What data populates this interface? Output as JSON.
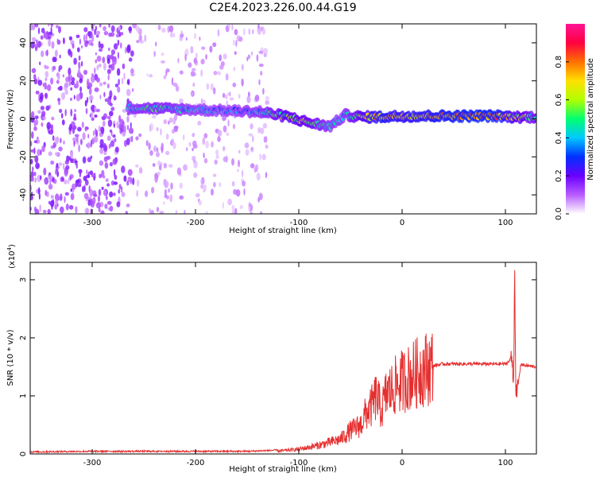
{
  "figure": {
    "title": "C2E4.2023.226.00.44.G19"
  },
  "chart_data": [
    {
      "type": "heatmap",
      "xlabel": "Height of straight line (km)",
      "ylabel": "Frequency (Hz)",
      "xlim": [
        -360,
        130
      ],
      "ylim": [
        -50,
        50
      ],
      "x_ticks": [
        -300,
        -200,
        -100,
        0,
        100
      ],
      "x_tick_labels": [
        "-300",
        "-200",
        "-100",
        "0",
        "100"
      ],
      "y_ticks": [
        -40,
        -20,
        0,
        20,
        40
      ],
      "y_tick_labels": [
        "-40",
        "-20",
        "0",
        "20",
        "40"
      ],
      "colorbar": {
        "label": "Normalized spectral amplitude",
        "range": [
          0,
          1
        ],
        "ticks": [
          0.0,
          0.2,
          0.4,
          0.6,
          0.8
        ],
        "tick_labels": [
          "0.0",
          "0.2",
          "0.4",
          "0.6",
          "0.8"
        ],
        "colormap": [
          "#ffffff",
          "#b85cff",
          "#6a00ff",
          "#0030ff",
          "#00c8ff",
          "#00ff70",
          "#b0ff00",
          "#ffe000",
          "#ff7000",
          "#ff0040",
          "#ff1493"
        ]
      },
      "signal_track": {
        "description_free": true,
        "x": [
          -265,
          -240,
          -210,
          -180,
          -150,
          -130,
          -110,
          -90,
          -70,
          -55,
          -40,
          -20,
          0,
          30,
          60,
          90,
          110,
          130
        ],
        "freq": [
          6,
          5.5,
          5,
          4.5,
          4,
          3,
          1,
          -2,
          -4,
          2,
          1,
          1,
          1.5,
          1.5,
          1.5,
          1.5,
          1,
          1
        ],
        "amplitude": [
          0.4,
          0.45,
          0.4,
          0.35,
          0.35,
          0.45,
          0.6,
          0.55,
          0.4,
          0.4,
          0.6,
          0.75,
          0.7,
          0.75,
          0.8,
          0.8,
          0.6,
          0.5
        ]
      },
      "grid": false
    },
    {
      "type": "line",
      "xlabel": "Height of straight line (km)",
      "ylabel": "SNR (10 * v/v)",
      "y_exponent_label": "(x10",
      "y_exponent": "4",
      "y_exponent_close": ")",
      "xlim": [
        -360,
        130
      ],
      "ylim": [
        0,
        3.3
      ],
      "x_ticks": [
        -300,
        -200,
        -100,
        0,
        100
      ],
      "x_tick_labels": [
        "-300",
        "-200",
        "-100",
        "0",
        "100"
      ],
      "y_ticks": [
        0,
        1,
        2,
        3
      ],
      "y_tick_labels": [
        "0",
        "1",
        "2",
        "3"
      ],
      "color": "#e53030",
      "series": [
        {
          "x": [
            -360,
            -300,
            -250,
            -200,
            -150,
            -120,
            -100,
            -80,
            -60,
            -50,
            -40,
            -35,
            -30,
            -25,
            -20,
            -15,
            -10,
            -5,
            0,
            10,
            20,
            30,
            40,
            60,
            80,
            100,
            104,
            106,
            108,
            109,
            110,
            115,
            120,
            130
          ],
          "y": [
            0.02,
            0.03,
            0.03,
            0.03,
            0.03,
            0.05,
            0.08,
            0.15,
            0.25,
            0.4,
            0.5,
            0.7,
            0.8,
            1.0,
            0.75,
            1.05,
            1.1,
            1.2,
            1.25,
            1.35,
            1.45,
            1.52,
            1.55,
            1.55,
            1.55,
            1.55,
            1.6,
            1.7,
            1.3,
            3.3,
            0.9,
            1.55,
            1.52,
            1.5
          ]
        }
      ],
      "grid": false
    }
  ]
}
